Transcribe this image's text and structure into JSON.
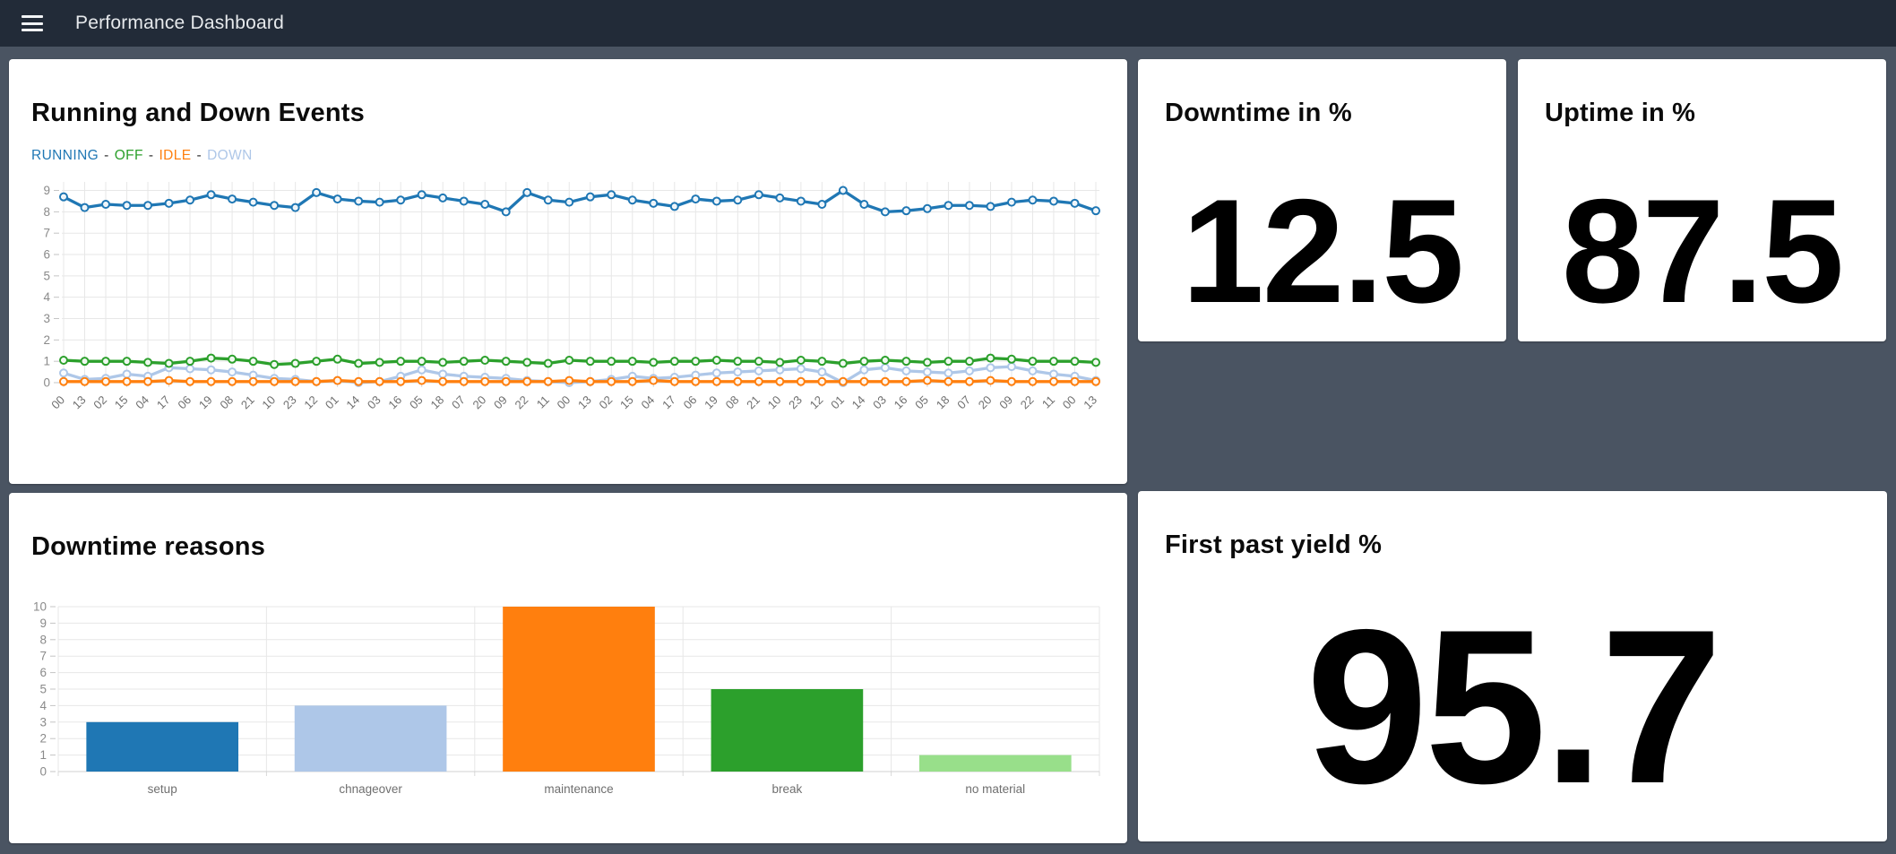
{
  "topbar": {
    "title": "Performance Dashboard",
    "menu_icon": "hamburger"
  },
  "colors": {
    "topbar_bg": "#222b38",
    "page_bg": "#4a5462",
    "card_bg": "#ffffff",
    "running": "#1f77b4",
    "off": "#2ca02c",
    "idle": "#ff7f0e",
    "down": "#aec7e8",
    "grid": "#e7e7e7",
    "tick_text": "#8a8a8a",
    "axis_text": "#6f6f6f"
  },
  "cards": {
    "events": {
      "title": "Running and Down Events",
      "legend": [
        {
          "label": "RUNNING",
          "color": "#1f77b4"
        },
        {
          "label": "OFF",
          "color": "#2ca02c"
        },
        {
          "label": "IDLE",
          "color": "#ff7f0e"
        },
        {
          "label": "DOWN",
          "color": "#aec7e8"
        }
      ],
      "separator": "-"
    },
    "downtime_pct": {
      "title": "Downtime in %",
      "value": "12.5"
    },
    "uptime_pct": {
      "title": "Uptime in %",
      "value": "87.5"
    },
    "reasons": {
      "title": "Downtime reasons"
    },
    "yield": {
      "title": "First past yield %",
      "value": "95.7"
    }
  },
  "chart_data": [
    {
      "type": "line",
      "title": "Running and Down Events",
      "x": [
        "00",
        "13",
        "02",
        "15",
        "04",
        "17",
        "06",
        "19",
        "08",
        "21",
        "10",
        "23",
        "12",
        "01",
        "14",
        "03",
        "16",
        "05",
        "18",
        "07",
        "20",
        "09",
        "22",
        "11",
        "00",
        "13",
        "02",
        "15",
        "04",
        "17",
        "06",
        "19",
        "08",
        "21",
        "10",
        "23",
        "12",
        "01",
        "14",
        "03",
        "16",
        "05",
        "18",
        "07",
        "20",
        "09",
        "22",
        "11",
        "00",
        "13"
      ],
      "series": [
        {
          "name": "RUNNING",
          "color": "#1f77b4",
          "values": [
            8.7,
            8.2,
            8.35,
            8.3,
            8.3,
            8.4,
            8.55,
            8.8,
            8.6,
            8.45,
            8.3,
            8.2,
            8.9,
            8.6,
            8.5,
            8.45,
            8.55,
            8.8,
            8.65,
            8.5,
            8.35,
            8.0,
            8.9,
            8.55,
            8.45,
            8.7,
            8.8,
            8.55,
            8.4,
            8.25,
            8.6,
            8.5,
            8.55,
            8.8,
            8.65,
            8.5,
            8.35,
            9.0,
            8.35,
            8.0,
            8.05,
            8.15,
            8.3,
            8.3,
            8.25,
            8.45,
            8.55,
            8.5,
            8.4,
            8.05
          ]
        },
        {
          "name": "OFF",
          "color": "#2ca02c",
          "values": [
            1.05,
            1.0,
            1.0,
            1.0,
            0.95,
            0.9,
            1.0,
            1.15,
            1.1,
            1.0,
            0.85,
            0.9,
            1.0,
            1.1,
            0.9,
            0.95,
            1.0,
            1.0,
            0.95,
            1.0,
            1.05,
            1.0,
            0.95,
            0.9,
            1.05,
            1.0,
            1.0,
            1.0,
            0.95,
            1.0,
            1.0,
            1.05,
            1.0,
            1.0,
            0.95,
            1.05,
            1.0,
            0.9,
            1.0,
            1.05,
            1.0,
            0.95,
            1.0,
            1.0,
            1.15,
            1.1,
            1.0,
            1.0,
            1.0,
            0.95
          ]
        },
        {
          "name": "IDLE",
          "color": "#ff7f0e",
          "values": [
            0.05,
            0.05,
            0.05,
            0.05,
            0.05,
            0.1,
            0.05,
            0.05,
            0.05,
            0.05,
            0.05,
            0.05,
            0.05,
            0.1,
            0.05,
            0.05,
            0.05,
            0.1,
            0.05,
            0.05,
            0.05,
            0.05,
            0.05,
            0.05,
            0.1,
            0.05,
            0.05,
            0.05,
            0.1,
            0.05,
            0.05,
            0.05,
            0.05,
            0.05,
            0.05,
            0.05,
            0.05,
            0.05,
            0.05,
            0.05,
            0.05,
            0.1,
            0.05,
            0.05,
            0.1,
            0.05,
            0.05,
            0.05,
            0.05,
            0.05
          ]
        },
        {
          "name": "DOWN",
          "color": "#aec7e8",
          "values": [
            0.45,
            0.15,
            0.2,
            0.4,
            0.3,
            0.7,
            0.65,
            0.6,
            0.5,
            0.35,
            0.2,
            0.15,
            0.05,
            0.1,
            0.0,
            0.05,
            0.3,
            0.6,
            0.4,
            0.3,
            0.25,
            0.2,
            0.1,
            0.05,
            0.0,
            0.05,
            0.15,
            0.3,
            0.2,
            0.25,
            0.35,
            0.45,
            0.5,
            0.55,
            0.6,
            0.65,
            0.5,
            0.0,
            0.6,
            0.7,
            0.55,
            0.5,
            0.45,
            0.55,
            0.7,
            0.75,
            0.55,
            0.4,
            0.3,
            0.1
          ]
        }
      ],
      "ylim": [
        0,
        9.4
      ],
      "yticks": [
        0,
        1,
        2,
        3,
        4,
        5,
        6,
        7,
        8,
        9
      ],
      "grid": true,
      "legend_position": "top-left"
    },
    {
      "type": "bar",
      "title": "Downtime reasons",
      "categories": [
        "setup",
        "chnageover",
        "maintenance",
        "break",
        "no material"
      ],
      "values": [
        3,
        4,
        10,
        5,
        1
      ],
      "bar_colors": [
        "#1f77b4",
        "#aec7e8",
        "#ff7f0e",
        "#2ca02c",
        "#98df8a"
      ],
      "ylim": [
        0,
        10
      ],
      "yticks": [
        0,
        1,
        2,
        3,
        4,
        5,
        6,
        7,
        8,
        9,
        10
      ],
      "grid": true,
      "xlabel": "",
      "ylabel": ""
    }
  ]
}
